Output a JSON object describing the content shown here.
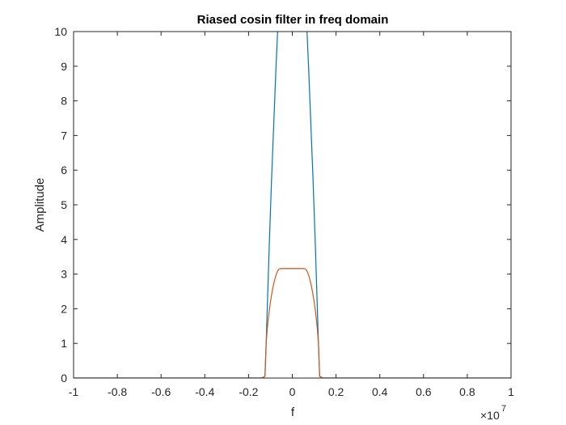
{
  "chart_data": {
    "type": "line",
    "title": "Riased cosin filter in freq domain",
    "xlabel": "f",
    "ylabel": "Amplitude",
    "x_exponent_base": "×10",
    "x_exponent_power": "7",
    "xlim": [
      -1,
      1
    ],
    "ylim": [
      0,
      10
    ],
    "x_ticks": [
      -1,
      -0.8,
      -0.6,
      -0.4,
      -0.2,
      0,
      0.2,
      0.4,
      0.6,
      0.8,
      1
    ],
    "x_tick_labels": [
      "-1",
      "-0.8",
      "-0.6",
      "-0.4",
      "-0.2",
      "0",
      "0.2",
      "0.4",
      "0.6",
      "0.8",
      "1"
    ],
    "y_ticks": [
      0,
      1,
      2,
      3,
      4,
      5,
      6,
      7,
      8,
      9,
      10
    ],
    "y_tick_labels": [
      "0",
      "1",
      "2",
      "3",
      "4",
      "5",
      "6",
      "7",
      "8",
      "9",
      "10"
    ],
    "grid": false,
    "series": [
      {
        "color": "#0072BD",
        "x": [
          -1,
          -0.14,
          -0.125,
          -0.12,
          -0.115,
          -0.11,
          -0.105,
          -0.1,
          -0.095,
          -0.09,
          -0.085,
          -0.08,
          -0.075,
          -0.07,
          -0.065,
          -0.06,
          0.06,
          0.065,
          0.07,
          0.075,
          0.08,
          0.085,
          0.09,
          0.095,
          0.1,
          0.105,
          0.11,
          0.115,
          0.12,
          0.125,
          0.14,
          1
        ],
        "y": [
          0,
          0,
          0.05,
          0.9,
          1.9,
          2.9,
          3.9,
          4.8,
          5.7,
          6.5,
          7.3,
          8.1,
          8.9,
          9.6,
          10.3,
          10.8,
          10.8,
          10.3,
          9.6,
          8.9,
          8.1,
          7.3,
          6.5,
          5.7,
          4.8,
          3.9,
          2.9,
          1.9,
          0.9,
          0.05,
          0,
          0
        ]
      },
      {
        "color": "#D95319",
        "x": [
          -1,
          -0.14,
          -0.125,
          -0.12,
          -0.115,
          -0.11,
          -0.105,
          -0.1,
          -0.095,
          -0.09,
          -0.085,
          -0.08,
          -0.075,
          -0.07,
          -0.065,
          -0.06,
          -0.05,
          0.05,
          0.06,
          0.065,
          0.07,
          0.075,
          0.08,
          0.085,
          0.09,
          0.095,
          0.1,
          0.105,
          0.11,
          0.115,
          0.12,
          0.125,
          0.14,
          1
        ],
        "y": [
          0,
          0,
          0.05,
          0.95,
          1.38,
          1.7,
          1.96,
          2.19,
          2.39,
          2.57,
          2.72,
          2.85,
          2.96,
          3.05,
          3.11,
          3.15,
          3.16,
          3.16,
          3.15,
          3.11,
          3.05,
          2.96,
          2.85,
          2.72,
          2.57,
          2.39,
          2.19,
          1.96,
          1.7,
          1.38,
          0.95,
          0.05,
          0,
          0
        ]
      }
    ]
  }
}
